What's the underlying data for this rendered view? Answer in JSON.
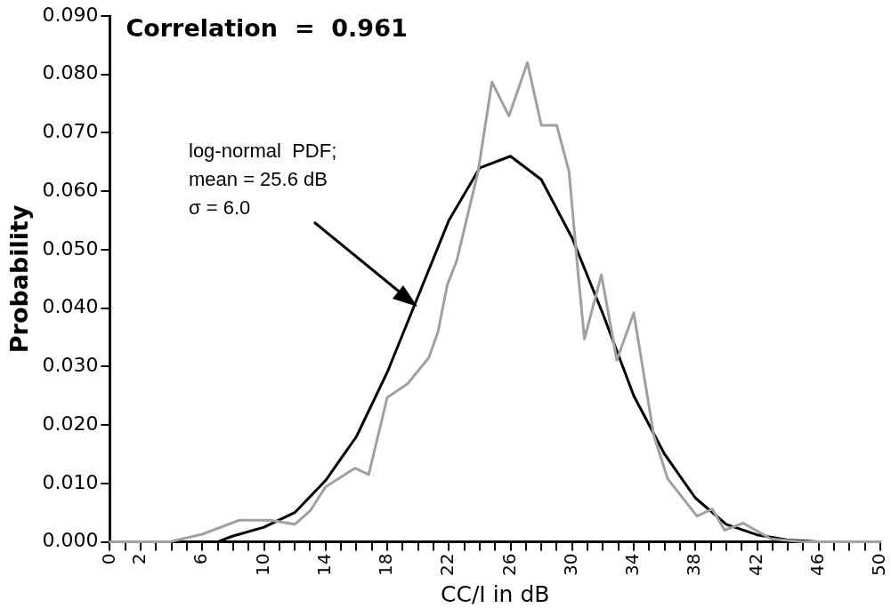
{
  "chart_data": {
    "type": "line",
    "xlabel": "CC/I in dB",
    "ylabel": "Probability",
    "xlim": [
      0,
      50
    ],
    "ylim": [
      0,
      0.09
    ],
    "xticks": [
      0,
      {
        "value": 1,
        "label": null
      },
      2,
      {
        "value": 3,
        "label": null
      },
      {
        "value": 4,
        "label": null
      },
      {
        "value": 5,
        "label": null
      },
      6,
      {
        "value": 7,
        "label": null
      },
      {
        "value": 8,
        "label": null
      },
      {
        "value": 9,
        "label": null
      },
      10,
      {
        "value": 11,
        "label": null
      },
      {
        "value": 12,
        "label": null
      },
      {
        "value": 13,
        "label": null
      },
      14,
      {
        "value": 15,
        "label": null
      },
      {
        "value": 16,
        "label": null
      },
      {
        "value": 17,
        "label": null
      },
      18,
      {
        "value": 19,
        "label": null
      },
      {
        "value": 20,
        "label": null
      },
      {
        "value": 21,
        "label": null
      },
      22,
      {
        "value": 23,
        "label": null
      },
      {
        "value": 24,
        "label": null
      },
      {
        "value": 25,
        "label": null
      },
      26,
      {
        "value": 27,
        "label": null
      },
      {
        "value": 28,
        "label": null
      },
      {
        "value": 29,
        "label": null
      },
      30,
      {
        "value": 31,
        "label": null
      },
      {
        "value": 32,
        "label": null
      },
      {
        "value": 33,
        "label": null
      },
      34,
      {
        "value": 35,
        "label": null
      },
      {
        "value": 36,
        "label": null
      },
      {
        "value": 37,
        "label": null
      },
      38,
      {
        "value": 39,
        "label": null
      },
      {
        "value": 40,
        "label": null
      },
      {
        "value": 41,
        "label": null
      },
      42,
      {
        "value": 43,
        "label": null
      },
      {
        "value": 44,
        "label": null
      },
      {
        "value": 45,
        "label": null
      },
      46,
      {
        "value": 47,
        "label": null
      },
      {
        "value": 48,
        "label": null
      },
      {
        "value": 49,
        "label": null
      },
      50
    ],
    "yticks": [
      {
        "value": 0,
        "label": "0.000"
      },
      {
        "value": 0.01,
        "label": "0.010"
      },
      {
        "value": 0.02,
        "label": "0.020"
      },
      {
        "value": 0.03,
        "label": "0.030"
      },
      {
        "value": 0.04,
        "label": "0.040"
      },
      {
        "value": 0.05,
        "label": "0.050"
      },
      {
        "value": 0.06,
        "label": "0.060"
      },
      {
        "value": 0.07,
        "label": "0.070"
      },
      {
        "value": 0.08,
        "label": "0.080"
      },
      {
        "value": 0.09,
        "label": "0.090"
      }
    ],
    "grid": false,
    "legend": false,
    "marker": "none",
    "line_style": "solid",
    "series": [
      {
        "color": "#a0a0a0",
        "x": [
          0,
          3.9,
          6,
          8.4,
          10.4,
          12,
          13,
          14,
          15.9,
          16.8,
          18,
          19.3,
          20.7,
          21.3,
          21.9,
          22.5,
          23.9,
          24.8,
          25.9,
          27.1,
          28,
          29,
          29.8,
          30.4,
          30.8,
          31.9,
          32.9,
          34,
          35.3,
          36.2,
          38.1,
          39.1,
          39.9,
          41.1,
          42.9,
          45,
          50
        ],
        "values": [
          0,
          0,
          0.0013,
          0.0037,
          0.0037,
          0.003,
          0.0053,
          0.0094,
          0.0126,
          0.0115,
          0.0247,
          0.027,
          0.0315,
          0.036,
          0.044,
          0.048,
          0.0634,
          0.0787,
          0.0729,
          0.082,
          0.0713,
          0.0713,
          0.0634,
          0.0456,
          0.0347,
          0.0457,
          0.0311,
          0.0392,
          0.0182,
          0.0108,
          0.0044,
          0.0056,
          0.002,
          0.0032,
          0.0005,
          0,
          0
        ]
      },
      {
        "color": "#000000",
        "x": [
          7,
          8,
          10,
          12,
          14,
          16,
          18,
          20,
          22,
          24,
          26,
          28,
          30,
          32,
          34,
          36,
          38,
          40,
          42,
          44,
          46
        ],
        "values": [
          0,
          0.001,
          0.0025,
          0.005,
          0.0105,
          0.018,
          0.029,
          0.042,
          0.055,
          0.064,
          0.066,
          0.062,
          0.052,
          0.039,
          0.025,
          0.015,
          0.0075,
          0.003,
          0.0012,
          0.0003,
          0
        ]
      }
    ],
    "annotations": [
      "Correlation  =  0.961",
      "log-normal  PDF;\nmean = 25.6 dB\nσ = 6.0"
    ]
  }
}
